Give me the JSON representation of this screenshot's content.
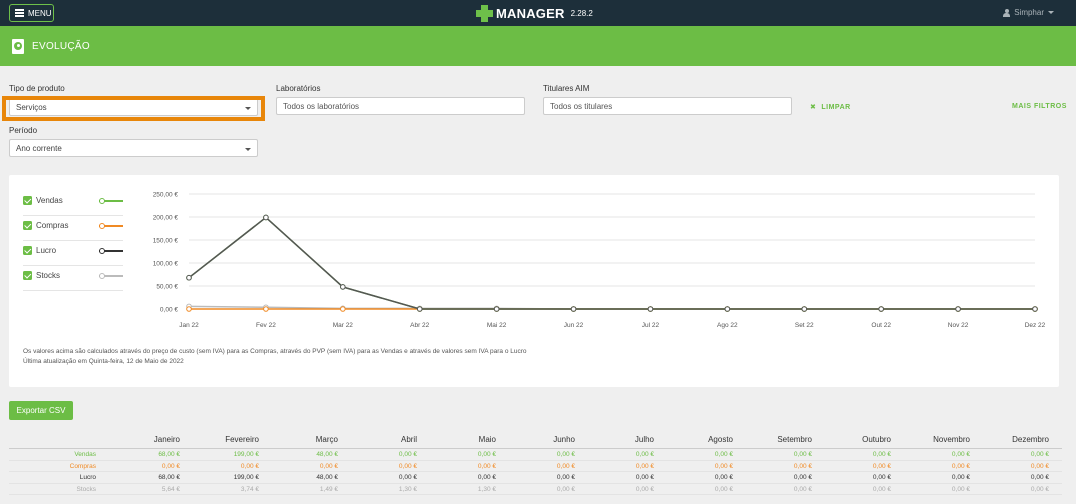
{
  "topbar": {
    "menu_label": "MENU",
    "brand_name": "MANAGER",
    "version": "2.28.2",
    "user_name": "Simphar"
  },
  "section": {
    "title": "EVOLUÇÃO"
  },
  "filters": {
    "tipo_label": "Tipo de produto",
    "tipo_value": "Serviços",
    "laboratorios_label": "Laboratórios",
    "laboratorios_placeholder": "Todos os laboratórios",
    "titulares_label": "Titulares AIM",
    "titulares_placeholder": "Todos os titulares",
    "limpar_label": "LIMPAR",
    "mais_filtros_label": "MAIS FILTROS",
    "periodo_label": "Período",
    "periodo_value": "Ano corrente"
  },
  "legend": [
    {
      "name": "Vendas",
      "color": "#6cbd45"
    },
    {
      "name": "Compras",
      "color": "#f08a24"
    },
    {
      "name": "Lucro",
      "color": "#333333"
    },
    {
      "name": "Stocks",
      "color": "#bbbbbb"
    }
  ],
  "chart_data": {
    "type": "line",
    "categories": [
      "Jan 22",
      "Fev 22",
      "Mar 22",
      "Abr 22",
      "Mai 22",
      "Jun 22",
      "Jul 22",
      "Ago 22",
      "Set 22",
      "Out 22",
      "Nov 22",
      "Dez 22"
    ],
    "y_ticks": [
      "0,00 €",
      "50,00 €",
      "100,00 €",
      "150,00 €",
      "200,00 €",
      "250,00 €"
    ],
    "ylim": [
      0,
      250
    ],
    "grid": true,
    "series": [
      {
        "name": "Vendas",
        "color": "#6cbd45",
        "values": [
          68,
          199,
          48,
          0,
          0,
          0,
          0,
          0,
          0,
          0,
          0,
          0
        ]
      },
      {
        "name": "Compras",
        "color": "#f08a24",
        "values": [
          0,
          0,
          0,
          0,
          0,
          0,
          0,
          0,
          0,
          0,
          0,
          0
        ]
      },
      {
        "name": "Lucro",
        "color": "#333333",
        "values": [
          68,
          199,
          48,
          0,
          0,
          0,
          0,
          0,
          0,
          0,
          0,
          0
        ]
      },
      {
        "name": "Stocks",
        "color": "#bbbbbb",
        "values": [
          5.64,
          3.74,
          1.49,
          1.3,
          1.3,
          0,
          0,
          0,
          0,
          0,
          0,
          0
        ]
      }
    ]
  },
  "notes": {
    "line1": "Os valores acima são calculados através do preço de custo (sem IVA) para as Compras, através do PVP (sem IVA) para as Vendas e através de valores sem IVA para o Lucro",
    "line2": "Última atualização em Quinta-feira, 12 de Maio de 2022"
  },
  "export_label": "Exportar CSV",
  "table": {
    "months": [
      "Janeiro",
      "Fevereiro",
      "Março",
      "Abril",
      "Maio",
      "Junho",
      "Julho",
      "Agosto",
      "Setembro",
      "Outubro",
      "Novembro",
      "Dezembro"
    ],
    "rows": [
      {
        "label": "Vendas",
        "color": "#6cbd45",
        "values": [
          "68,00 €",
          "199,00 €",
          "48,00 €",
          "0,00 €",
          "0,00 €",
          "0,00 €",
          "0,00 €",
          "0,00 €",
          "0,00 €",
          "0,00 €",
          "0,00 €",
          "0,00 €"
        ]
      },
      {
        "label": "Compras",
        "color": "#f08a24",
        "values": [
          "0,00 €",
          "0,00 €",
          "0,00 €",
          "0,00 €",
          "0,00 €",
          "0,00 €",
          "0,00 €",
          "0,00 €",
          "0,00 €",
          "0,00 €",
          "0,00 €",
          "0,00 €"
        ]
      },
      {
        "label": "Lucro",
        "color": "#333333",
        "values": [
          "68,00 €",
          "199,00 €",
          "48,00 €",
          "0,00 €",
          "0,00 €",
          "0,00 €",
          "0,00 €",
          "0,00 €",
          "0,00 €",
          "0,00 €",
          "0,00 €",
          "0,00 €"
        ]
      },
      {
        "label": "Stocks",
        "color": "#aaaaaa",
        "values": [
          "5,64 €",
          "3,74 €",
          "1,49 €",
          "1,30 €",
          "1,30 €",
          "0,00 €",
          "0,00 €",
          "0,00 €",
          "0,00 €",
          "0,00 €",
          "0,00 €",
          "0,00 €"
        ]
      }
    ]
  }
}
